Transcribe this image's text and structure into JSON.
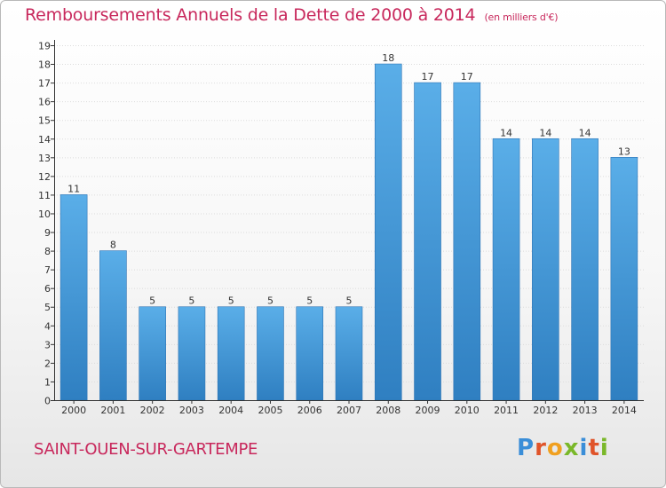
{
  "header": {
    "title": "Remboursements Annuels de la Dette de 2000 à 2014",
    "unit": "(en milliers d'€)"
  },
  "footer": {
    "town": "SAINT-OUEN-SUR-GARTEMPE",
    "logo": "Proxiti"
  },
  "colors": {
    "accent": "#c8285c",
    "bar_light": "#5aaee8",
    "bar_dark": "#2f7fc1"
  },
  "chart_data": {
    "type": "bar",
    "title": "Remboursements Annuels de la Dette de 2000 à 2014",
    "subtitle": "(en milliers d'€)",
    "xlabel": "",
    "ylabel": "",
    "categories": [
      "2000",
      "2001",
      "2002",
      "2003",
      "2004",
      "2005",
      "2006",
      "2007",
      "2008",
      "2009",
      "2010",
      "2011",
      "2012",
      "2013",
      "2014"
    ],
    "values": [
      11,
      8,
      5,
      5,
      5,
      5,
      5,
      5,
      18,
      17,
      17,
      14,
      14,
      14,
      13
    ],
    "data_labels": [
      "11",
      "8",
      "5",
      "5",
      "5",
      "5",
      "5",
      "5",
      "18",
      "17",
      "17",
      "14",
      "14",
      "14",
      "13"
    ],
    "yticks": [
      "0",
      "1",
      "2",
      "3",
      "4",
      "5",
      "6",
      "7",
      "8",
      "9",
      "10",
      "11",
      "12",
      "13",
      "14",
      "15",
      "16",
      "17",
      "18",
      "19"
    ],
    "ylim": [
      0,
      19
    ],
    "grid": true,
    "legend": "none"
  }
}
